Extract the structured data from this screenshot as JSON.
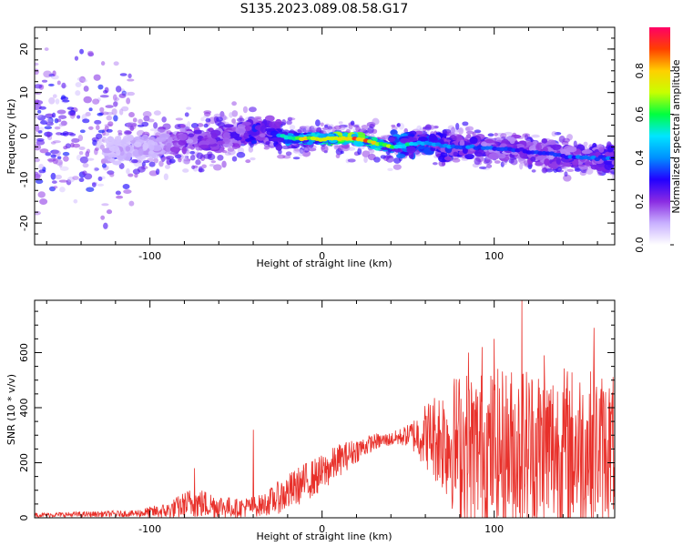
{
  "title": "S135.2023.089.08.58.G17",
  "chart_data": [
    {
      "type": "heatmap",
      "xlabel": "Height of straight line (km)",
      "ylabel": "Frequency (Hz)",
      "xlim": [
        -167,
        170
      ],
      "ylim": [
        -25,
        25
      ],
      "xticks": [
        -100,
        0,
        100
      ],
      "yticks": [
        -20,
        -10,
        0,
        10,
        20
      ],
      "colorbar": {
        "label": "Normalized spectral amplitude",
        "range": [
          0,
          1
        ],
        "ticks": [
          "0.0",
          "0.2",
          "0.4",
          "0.6",
          "0.8"
        ],
        "colormap": [
          "#ffffff",
          "#c8b0ff",
          "#8a2be2",
          "#2200ff",
          "#0090ff",
          "#00e5ff",
          "#00ff40",
          "#c8ff00",
          "#ffd000",
          "#ff4000",
          "#ff0066"
        ]
      },
      "ridge": [
        {
          "x": -110,
          "y": -3,
          "a": 0.15
        },
        {
          "x": -90,
          "y": -2,
          "a": 0.2
        },
        {
          "x": -80,
          "y": -1,
          "a": 0.3
        },
        {
          "x": -65,
          "y": -1,
          "a": 0.3
        },
        {
          "x": -50,
          "y": 0,
          "a": 0.35
        },
        {
          "x": -40,
          "y": 1,
          "a": 0.4
        },
        {
          "x": -30,
          "y": 1,
          "a": 0.35
        },
        {
          "x": -20,
          "y": -0.5,
          "a": 0.55
        },
        {
          "x": -10,
          "y": -0.6,
          "a": 0.7
        },
        {
          "x": 0,
          "y": -0.7,
          "a": 0.75
        },
        {
          "x": 10,
          "y": -0.5,
          "a": 0.85
        },
        {
          "x": 20,
          "y": -0.6,
          "a": 0.85
        },
        {
          "x": 30,
          "y": -1.5,
          "a": 0.75
        },
        {
          "x": 40,
          "y": -2.5,
          "a": 0.6
        },
        {
          "x": 50,
          "y": -2,
          "a": 0.5
        },
        {
          "x": 60,
          "y": -1.5,
          "a": 0.45
        },
        {
          "x": 75,
          "y": -2.5,
          "a": 0.4
        },
        {
          "x": 90,
          "y": -2.5,
          "a": 0.35
        },
        {
          "x": 110,
          "y": -3,
          "a": 0.3
        },
        {
          "x": 130,
          "y": -4,
          "a": 0.3
        },
        {
          "x": 150,
          "y": -5,
          "a": 0.35
        },
        {
          "x": 165,
          "y": -5,
          "a": 0.35
        }
      ]
    },
    {
      "type": "line",
      "xlabel": "Height of straight line (km)",
      "ylabel": "SNR (10 * v/v)",
      "xlim": [
        -167,
        170
      ],
      "ylim": [
        0,
        790
      ],
      "xticks": [
        -100,
        0,
        100
      ],
      "yticks": [
        0,
        200,
        400,
        600
      ],
      "line_color": "#e8302a",
      "envelope": [
        {
          "x": -167,
          "base": 10,
          "spread": 8
        },
        {
          "x": -110,
          "base": 15,
          "spread": 12
        },
        {
          "x": -90,
          "base": 25,
          "spread": 30
        },
        {
          "x": -75,
          "base": 55,
          "spread": 60
        },
        {
          "x": -50,
          "base": 35,
          "spread": 35
        },
        {
          "x": -35,
          "base": 45,
          "spread": 40
        },
        {
          "x": -20,
          "base": 90,
          "spread": 70
        },
        {
          "x": -10,
          "base": 130,
          "spread": 70
        },
        {
          "x": 0,
          "base": 160,
          "spread": 70
        },
        {
          "x": 10,
          "base": 210,
          "spread": 60
        },
        {
          "x": 20,
          "base": 245,
          "spread": 45
        },
        {
          "x": 30,
          "base": 275,
          "spread": 30
        },
        {
          "x": 40,
          "base": 285,
          "spread": 25
        },
        {
          "x": 50,
          "base": 300,
          "spread": 40
        },
        {
          "x": 60,
          "base": 300,
          "spread": 120
        },
        {
          "x": 70,
          "base": 290,
          "spread": 200
        },
        {
          "x": 80,
          "base": 260,
          "spread": 280
        },
        {
          "x": 100,
          "base": 240,
          "spread": 300
        },
        {
          "x": 120,
          "base": 250,
          "spread": 320
        },
        {
          "x": 150,
          "base": 250,
          "spread": 300
        },
        {
          "x": 170,
          "base": 260,
          "spread": 260
        }
      ],
      "peaks": [
        {
          "x": 116,
          "y": 790
        },
        {
          "x": 158,
          "y": 690
        },
        {
          "x": 100,
          "y": 650
        },
        {
          "x": 93,
          "y": 620
        },
        {
          "x": 85,
          "y": 600
        },
        {
          "x": 129,
          "y": 590
        },
        {
          "x": -40,
          "y": 320
        },
        {
          "x": -74,
          "y": 180
        }
      ]
    }
  ]
}
